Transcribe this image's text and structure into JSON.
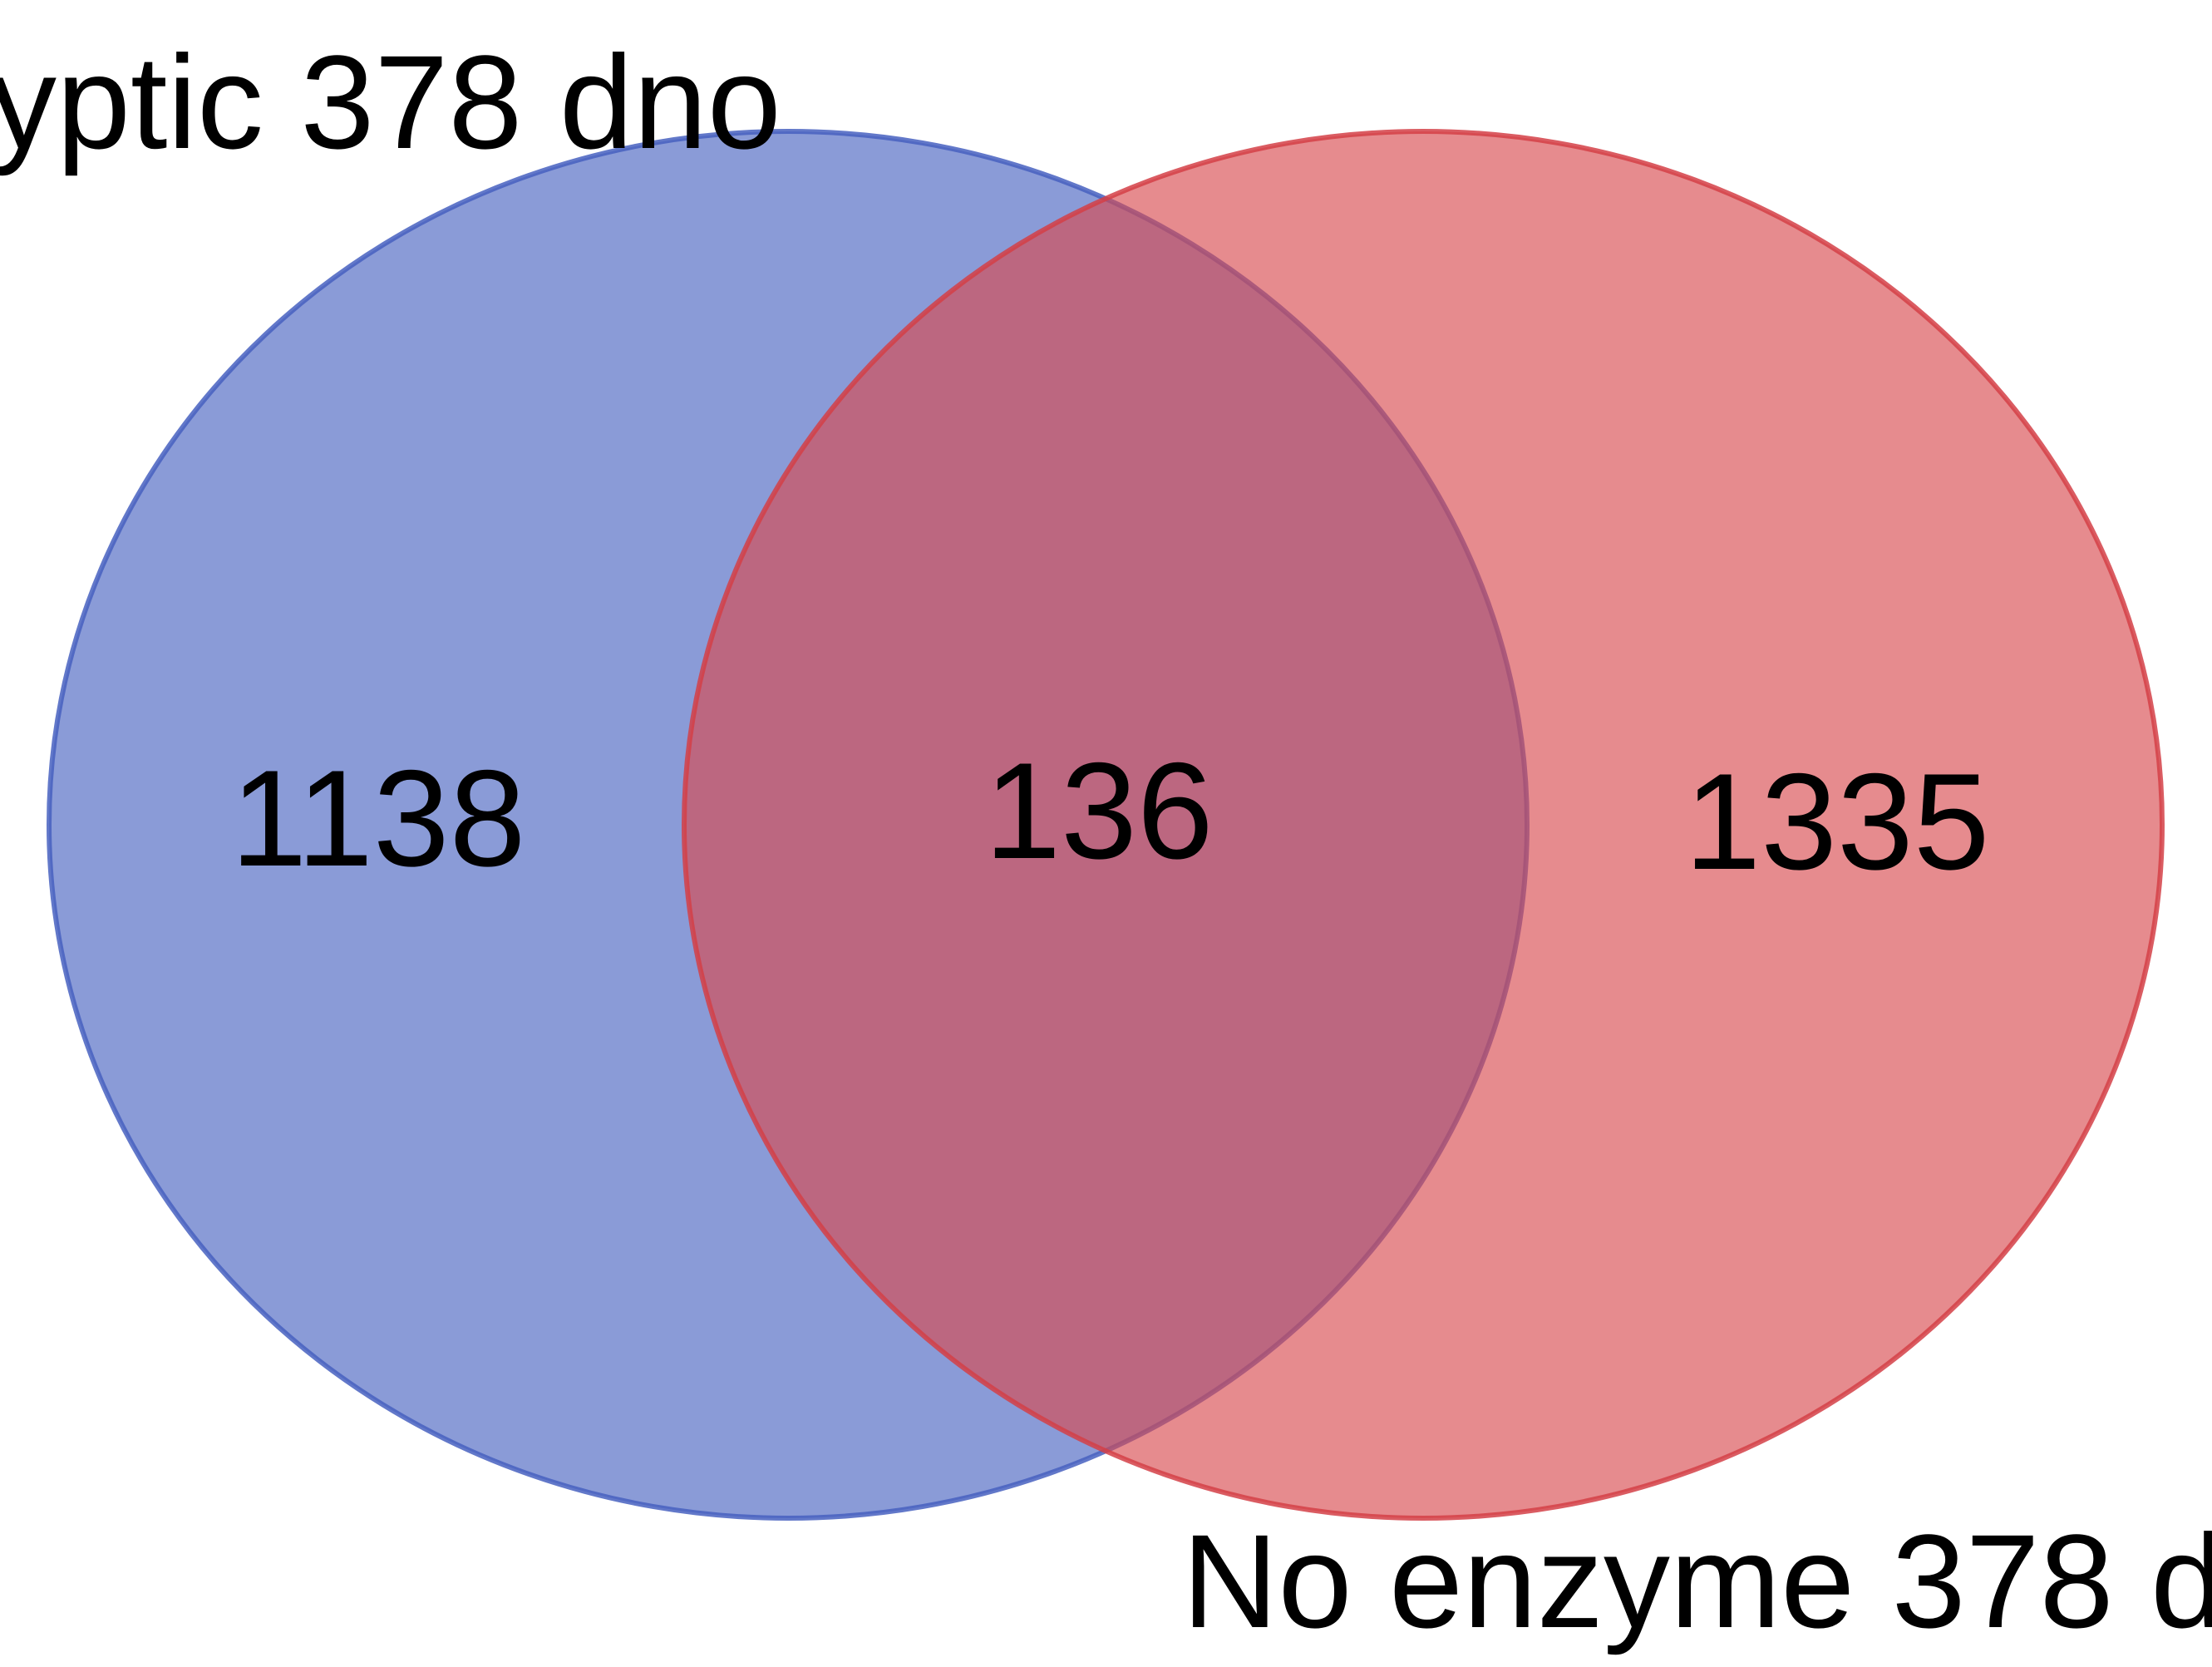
{
  "sets": [
    {
      "label": "yptic 378 dno",
      "color": "#4863c0",
      "stroke": "#4660c0",
      "opacity": 0.64
    },
    {
      "label": "No enzyme 378 d",
      "color": "#d84a4f",
      "stroke": "#d43f46",
      "opacity": 0.64
    }
  ],
  "regions": {
    "left_only": "1138",
    "intersection": "136",
    "right_only": "1335"
  }
}
